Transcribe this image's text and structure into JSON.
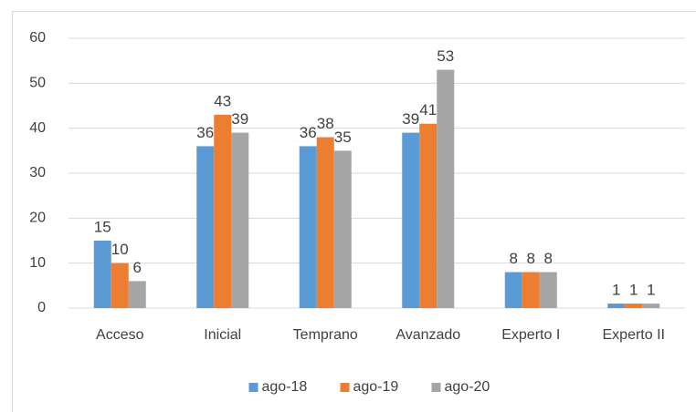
{
  "chart_data": {
    "type": "bar",
    "categories": [
      "Acceso",
      "Inicial",
      "Temprano",
      "Avanzado",
      "Experto I",
      "Experto II"
    ],
    "series": [
      {
        "name": "ago-18",
        "color": "#5b9bd5",
        "values": [
          15,
          36,
          36,
          39,
          8,
          1
        ]
      },
      {
        "name": "ago-19",
        "color": "#ed7d31",
        "values": [
          10,
          43,
          38,
          41,
          8,
          1
        ]
      },
      {
        "name": "ago-20",
        "color": "#a5a5a5",
        "values": [
          6,
          39,
          35,
          53,
          8,
          1
        ]
      }
    ],
    "ylim": [
      0,
      60
    ],
    "yticks": [
      0,
      10,
      20,
      30,
      40,
      50,
      60
    ],
    "grid": true,
    "legend": "bottom"
  }
}
